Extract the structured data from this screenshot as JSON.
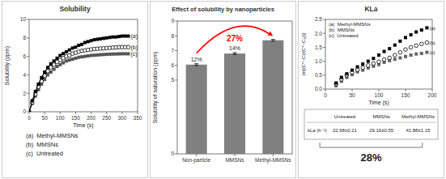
{
  "chart_data": [
    {
      "type": "line",
      "title": "Solubility",
      "x": [
        0,
        10,
        20,
        30,
        40,
        50,
        60,
        70,
        80,
        90,
        100,
        110,
        120,
        130,
        140,
        150,
        160,
        170,
        180,
        190,
        200,
        210,
        220,
        230,
        240,
        250,
        260,
        270,
        280,
        290,
        300,
        310,
        320
      ],
      "series": [
        {
          "name": "(a)  Methyl-MMSNs",
          "color": "#000000",
          "marker": "square",
          "line_style": "solid",
          "values": [
            0.0,
            1.2,
            2.2,
            3.0,
            3.7,
            4.3,
            4.8,
            5.2,
            5.5,
            5.8,
            6.1,
            6.3,
            6.5,
            6.7,
            6.9,
            7.0,
            7.2,
            7.3,
            7.5,
            7.6,
            7.7,
            7.8,
            7.85,
            7.9,
            7.95,
            8.0,
            8.05,
            8.1,
            8.1,
            8.15,
            8.2,
            8.2,
            8.2
          ]
        },
        {
          "name": "(b)  MMSNs",
          "color": "#000000",
          "marker": "open-circle",
          "line_style": "solid",
          "values": [
            0.0,
            1.0,
            1.9,
            2.7,
            3.3,
            3.9,
            4.4,
            4.8,
            5.1,
            5.4,
            5.6,
            5.8,
            6.0,
            6.1,
            6.3,
            6.4,
            6.5,
            6.6,
            6.65,
            6.7,
            6.75,
            6.8,
            6.82,
            6.85,
            6.87,
            6.9,
            6.92,
            6.95,
            6.97,
            7.0,
            7.0,
            7.0,
            7.0
          ]
        },
        {
          "name": "(c)  Untreated",
          "color": "#555555",
          "marker": "square",
          "line_style": "solid",
          "values": [
            0.0,
            0.9,
            1.7,
            2.4,
            3.0,
            3.5,
            4.0,
            4.3,
            4.6,
            4.9,
            5.1,
            5.3,
            5.5,
            5.6,
            5.7,
            5.8,
            5.9,
            5.95,
            6.0,
            6.05,
            6.1,
            6.12,
            6.15,
            6.18,
            6.2,
            6.22,
            6.24,
            6.25,
            6.26,
            6.27,
            6.28,
            6.28,
            6.28
          ]
        }
      ],
      "xlabel": "Time (s)",
      "ylabel": "Solubility (ppm)",
      "xlim": [
        0,
        350
      ],
      "ylim": [
        0,
        10
      ],
      "xticks": [
        0,
        50,
        100,
        150,
        200,
        250,
        300,
        350
      ],
      "yticks": [
        0,
        2,
        4,
        6,
        8,
        10
      ],
      "grid": false,
      "legend": "bottom",
      "annotations": [
        {
          "text": "(a)",
          "x": 320,
          "y": 8.2
        },
        {
          "text": "(b)",
          "x": 320,
          "y": 7.0
        },
        {
          "text": "(c)",
          "x": 320,
          "y": 6.28
        }
      ]
    },
    {
      "type": "bar",
      "title": "Effect of solubility by nanoparticles",
      "categories": [
        "Non-particle",
        "MMSNs",
        "Methyl-MMSNs"
      ],
      "values": [
        6.05,
        6.8,
        7.7
      ],
      "errors": [
        0.06,
        0.06,
        0.06
      ],
      "color": "#808080",
      "ylabel": "Solubility of saturation (ppm)",
      "ylim": [
        0,
        9
      ],
      "yticks": [
        0,
        5,
        6,
        7,
        8,
        9
      ],
      "grid": false,
      "annotations": [
        {
          "text": "12%",
          "x": "Non-particle",
          "y": 6.05
        },
        {
          "text": "14%",
          "x": "MMSNs",
          "y": 6.8
        },
        {
          "text": "27%",
          "color": "#ff0000",
          "from": "Non-particle",
          "to": "Methyl-MMSNs"
        }
      ]
    },
    {
      "type": "scatter",
      "title": "KLa",
      "x": [
        20,
        30,
        40,
        50,
        60,
        70,
        80,
        90,
        100,
        110,
        120,
        130,
        140,
        150,
        160,
        170,
        180,
        190
      ],
      "series": [
        {
          "name": "(a)  Methyl-MMSNs",
          "color": "#000000",
          "marker": "square",
          "values": [
            0.22,
            0.42,
            0.55,
            0.68,
            0.8,
            0.9,
            1.0,
            1.1,
            1.22,
            1.35,
            1.45,
            1.58,
            1.72,
            1.85,
            1.95,
            2.05,
            2.12,
            2.2
          ]
        },
        {
          "name": "(b)  MMSNs",
          "color": "#000000",
          "marker": "open-circle",
          "values": [
            0.18,
            0.35,
            0.5,
            0.6,
            0.7,
            0.77,
            0.85,
            0.92,
            0.98,
            1.06,
            1.12,
            1.22,
            1.32,
            1.42,
            1.5,
            1.56,
            1.62,
            1.67
          ]
        },
        {
          "name": "(c)  Untreated",
          "color": "#666666",
          "marker": "square",
          "values": [
            0.12,
            0.28,
            0.42,
            0.52,
            0.62,
            0.68,
            0.76,
            0.82,
            0.88,
            0.96,
            1.02,
            1.07,
            1.12,
            1.17,
            1.22,
            1.26,
            1.28,
            1.32
          ]
        }
      ],
      "xlabel": "Time (s)",
      "ylabel": "|ln[(C*−C)/(C*−C₀)]|",
      "xlim": [
        0,
        200
      ],
      "ylim": [
        0,
        2.5
      ],
      "xticks": [
        0,
        50,
        100,
        150,
        200
      ],
      "yticks": [
        {
          "value": 0,
          "label": "0.0"
        },
        0.5,
        {
          "value": 1,
          "label": "1.0"
        },
        1.5,
        {
          "value": 2,
          "label": "2.0"
        },
        2.5
      ],
      "grid": false,
      "legend": "upper left",
      "annotations": [
        {
          "text": "(a)",
          "x": 190,
          "y": 2.2
        },
        {
          "text": "(b)",
          "x": 190,
          "y": 1.67
        },
        {
          "text": "(c)",
          "x": 190,
          "y": 1.32
        }
      ],
      "table": {
        "columns": [
          "Untreated",
          "MMSNs",
          "Methyl-MMSNs"
        ],
        "rows": [
          {
            "label": "kLa (h⁻¹)",
            "cells": [
              "22.68±0.21",
              "29.16±0.55",
              "41.88±1.15"
            ]
          }
        ],
        "bracket_label": "28%"
      }
    }
  ]
}
